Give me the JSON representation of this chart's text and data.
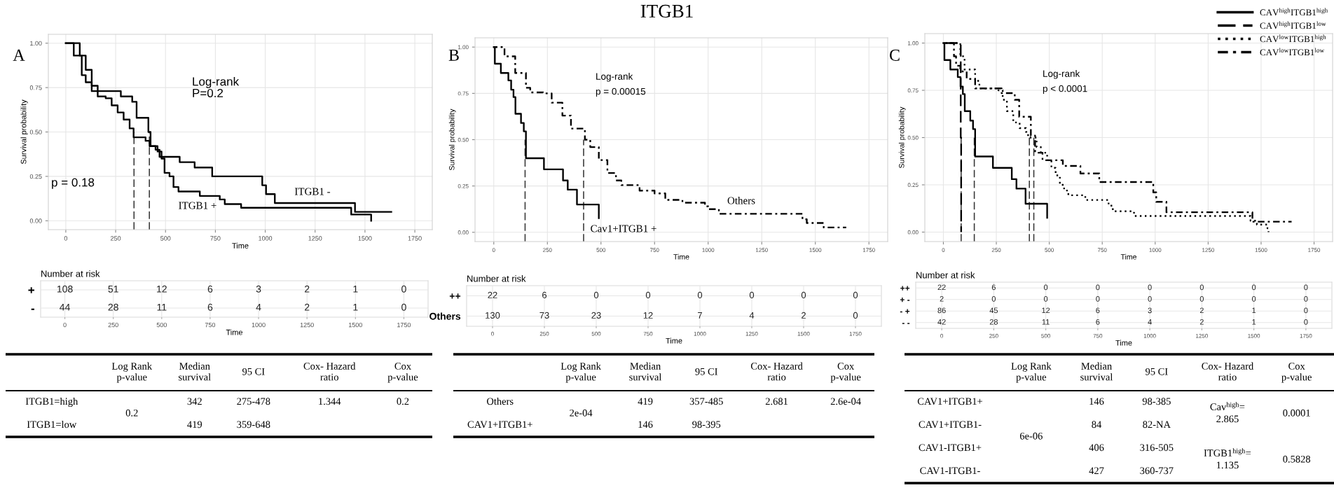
{
  "chart_data": [
    {
      "type": "step",
      "xlabel": "Time",
      "ylabel": "Survival probability",
      "xlim": [
        -87.5,
        1837.5
      ],
      "ylim": [
        -0.05,
        1.05
      ],
      "xticks": [
        0,
        250,
        500,
        750,
        1000,
        1250,
        1500,
        1750
      ],
      "yticks": [
        {
          "value": 0,
          "label": "0.00"
        },
        {
          "value": 0.25,
          "label": "0.25"
        },
        {
          "value": 0.5,
          "label": "0.50"
        },
        {
          "value": 0.75,
          "label": "0.75"
        },
        {
          "value": 1,
          "label": "1.00"
        }
      ],
      "grid": true,
      "series": [
        {
          "color": "#000000",
          "line_style": "solid",
          "x": [
            0,
            40,
            80,
            100,
            130,
            160,
            200,
            230,
            260,
            290,
            320,
            340,
            400,
            420,
            460,
            480,
            495,
            520,
            540,
            565,
            672,
            772,
            797,
            879,
            1431,
            1531
          ],
          "values": [
            1,
            0.93,
            0.82,
            0.78,
            0.73,
            0.7,
            0.69,
            0.65,
            0.61,
            0.57,
            0.52,
            0.47,
            0.45,
            0.42,
            0.39,
            0.35,
            0.27,
            0.25,
            0.19,
            0.165,
            0.14,
            0.12,
            0.094,
            0.073,
            0.035,
            0
          ]
        },
        {
          "color": "#000000",
          "line_style": "solid",
          "x": [
            0,
            70,
            100,
            130,
            160,
            276,
            333,
            355,
            414,
            425,
            450,
            470,
            571,
            646,
            734,
            985,
            1004,
            1048,
            1450,
            1632
          ],
          "values": [
            1,
            0.93,
            0.85,
            0.76,
            0.73,
            0.7,
            0.67,
            0.58,
            0.5,
            0.42,
            0.4,
            0.36,
            0.33,
            0.3,
            0.25,
            0.2,
            0.15,
            0.1,
            0.05,
            0.05
          ]
        }
      ],
      "ref_lines": [
        {
          "axis": "x",
          "value": 342,
          "line_style": "dashed",
          "color": "#333333"
        },
        {
          "axis": "x",
          "value": 419,
          "line_style": "dashed",
          "color": "#333333"
        }
      ],
      "annotations": [
        "ITGB1",
        "A",
        "Log-rank\nP=0.2",
        "p = 0.18",
        "ITGB1 -",
        "ITGB1 +"
      ]
    },
    {
      "type": "heatmap",
      "title": "Number at risk",
      "xlabel": "Time",
      "categories": [
        "0",
        "250",
        "500",
        "750",
        "1000",
        "1250",
        "1500",
        "1750"
      ],
      "y_categories": [
        "+",
        "-"
      ],
      "cells": [
        [
          108,
          51,
          12,
          6,
          3,
          2,
          1,
          0
        ],
        [
          44,
          28,
          11,
          6,
          4,
          2,
          1,
          0
        ]
      ],
      "data_labels": true,
      "grid": true
    },
    {
      "type": "other",
      "categories": [
        null,
        "Log Rank\np-value",
        "Median\nsurvival",
        "95 CI",
        "Cox- Hazard\nratio",
        "Cox\np-value"
      ],
      "cell_labels": [
        [
          "ITGB1=high",
          null,
          "342",
          "275-478",
          "1.344",
          "0.2"
        ],
        [
          null,
          "0.2",
          null,
          null,
          null,
          null
        ],
        [
          "ITGB1=low",
          null,
          "419",
          "359-648",
          null,
          null
        ]
      ]
    },
    {
      "type": "step",
      "xlabel": "Time",
      "ylabel": "Survival probability",
      "xlim": [
        -87.5,
        1837.5
      ],
      "ylim": [
        -0.05,
        1.05
      ],
      "xticks": [
        0,
        250,
        500,
        750,
        1000,
        1250,
        1500,
        1750
      ],
      "yticks": [
        {
          "value": 0,
          "label": "0.00"
        },
        {
          "value": 0.25,
          "label": "0.25"
        },
        {
          "value": 0.5,
          "label": "0.50"
        },
        {
          "value": 0.75,
          "label": "0.75"
        },
        {
          "value": 1,
          "label": "1.00"
        }
      ],
      "grid": true,
      "series": [
        {
          "color": "#000000",
          "line_style": "solid",
          "x": [
            0,
            5,
            33,
            68,
            81,
            92,
            101,
            127,
            140,
            150,
            234,
            323,
            345,
            388,
            490
          ],
          "values": [
            1,
            0.91,
            0.86,
            0.82,
            0.77,
            0.73,
            0.64,
            0.59,
            0.545,
            0.4,
            0.34,
            0.28,
            0.23,
            0.15,
            0.076
          ]
        },
        {
          "color": "#000000",
          "line_style": "dashdot",
          "x": [
            0,
            50,
            100,
            150,
            170,
            230,
            270,
            320,
            360,
            425,
            450,
            490,
            530,
            570,
            595,
            680,
            750,
            800,
            880,
            985,
            1000,
            1050,
            1440,
            1460,
            1539,
            1644
          ],
          "values": [
            1,
            0.95,
            0.86,
            0.78,
            0.755,
            0.75,
            0.7,
            0.63,
            0.56,
            0.5,
            0.46,
            0.39,
            0.32,
            0.28,
            0.255,
            0.225,
            0.21,
            0.175,
            0.16,
            0.14,
            0.125,
            0.1,
            0.07,
            0.05,
            0.026,
            0.026
          ]
        }
      ],
      "ref_lines": [
        {
          "axis": "x",
          "value": 146,
          "line_style": "dashed",
          "color": "#333333"
        },
        {
          "axis": "x",
          "value": 419,
          "line_style": "dashed",
          "color": "#333333"
        }
      ],
      "annotations": [
        "B",
        "Log-rank\np = 0.00015",
        "Others",
        "Cav1+ITGB1 +"
      ]
    },
    {
      "type": "heatmap",
      "title": "Number at risk",
      "xlabel": "Time",
      "categories": [
        "0",
        "250",
        "500",
        "750",
        "1000",
        "1250",
        "1500",
        "1750"
      ],
      "y_categories": [
        "++",
        "Others"
      ],
      "cells": [
        [
          22,
          6,
          0,
          0,
          0,
          0,
          0,
          0
        ],
        [
          130,
          73,
          23,
          12,
          7,
          4,
          2,
          0
        ]
      ],
      "data_labels": true,
      "grid": true
    },
    {
      "type": "other",
      "categories": [
        null,
        "Log Rank\np-value",
        "Median\nsurvival",
        "95 CI",
        "Cox- Hazard\nratio",
        "Cox\np-value"
      ],
      "cell_labels": [
        [
          "Others",
          null,
          "419",
          "357-485",
          "2.681",
          "2.6e-04"
        ],
        [
          null,
          "2e-04",
          null,
          null,
          null,
          null
        ],
        [
          "CAV1+ITGB1+",
          null,
          "146",
          "98-395",
          null,
          null
        ]
      ]
    },
    {
      "type": "step",
      "xlabel": "Time",
      "ylabel": "Survival probability",
      "xlim": [
        -87.5,
        1837.5
      ],
      "ylim": [
        -0.05,
        1.05
      ],
      "xticks": [
        0,
        250,
        500,
        750,
        1000,
        1250,
        1500,
        1750
      ],
      "yticks": [
        {
          "value": 0,
          "label": "0.00"
        },
        {
          "value": 0.25,
          "label": "0.25"
        },
        {
          "value": 0.5,
          "label": "0.50"
        },
        {
          "value": 0.75,
          "label": "0.75"
        },
        {
          "value": 1,
          "label": "1.00"
        }
      ],
      "grid": true,
      "legend": "top right",
      "series": [
        {
          "name": "CAV$^{high}$ITGB1$^{high}$",
          "color": "#000000",
          "line_style": "solid",
          "x": [
            0,
            5,
            33,
            68,
            81,
            92,
            101,
            127,
            140,
            150,
            234,
            323,
            345,
            388,
            490
          ],
          "values": [
            1,
            0.91,
            0.86,
            0.82,
            0.77,
            0.73,
            0.64,
            0.59,
            0.545,
            0.4,
            0.34,
            0.28,
            0.23,
            0.15,
            0.076
          ]
        },
        {
          "name": "CAV$^{high}$ITGB1$^{low}$",
          "color": "#000000",
          "line_style": "dashed",
          "x": [
            0,
            82,
            84
          ],
          "values": [
            1,
            0.5,
            0
          ]
        },
        {
          "name": "CAV$^{low}$ITGB1$^{high}$",
          "color": "#000000",
          "line_style": "dotted",
          "x": [
            0,
            80,
            100,
            150,
            170,
            260,
            280,
            300,
            330,
            360,
            390,
            400,
            440,
            460,
            490,
            510,
            530,
            550,
            570,
            590,
            670,
            780,
            800,
            900,
            1450,
            1480,
            1530,
            1535
          ],
          "values": [
            1,
            0.93,
            0.86,
            0.8,
            0.76,
            0.75,
            0.7,
            0.64,
            0.58,
            0.55,
            0.53,
            0.5,
            0.45,
            0.42,
            0.38,
            0.34,
            0.3,
            0.25,
            0.22,
            0.195,
            0.17,
            0.14,
            0.11,
            0.085,
            0.06,
            0.04,
            0.02,
            0
          ]
        },
        {
          "name": "CAV$^{low}$ITGB1$^{low}$",
          "color": "#000000",
          "line_style": "dashdot",
          "x": [
            0,
            50,
            60,
            80,
            110,
            150,
            275,
            337,
            358,
            413,
            433,
            468,
            564,
            647,
            736,
            991,
            1005,
            1053,
            1459,
            1644
          ],
          "values": [
            1,
            0.93,
            0.88,
            0.85,
            0.81,
            0.76,
            0.735,
            0.7,
            0.61,
            0.51,
            0.42,
            0.38,
            0.35,
            0.31,
            0.265,
            0.21,
            0.16,
            0.105,
            0.055,
            0.055
          ]
        }
      ],
      "ref_lines": [
        {
          "axis": "x",
          "value": 84,
          "line_style": "dashed",
          "color": "#333333"
        },
        {
          "axis": "x",
          "value": 146,
          "line_style": "dashed",
          "color": "#333333"
        },
        {
          "axis": "x",
          "value": 406,
          "line_style": "dashed",
          "color": "#333333"
        },
        {
          "axis": "x",
          "value": 427,
          "line_style": "dashed",
          "color": "#333333"
        }
      ],
      "annotations": [
        "C",
        "Log-rank\np < 0.0001"
      ]
    },
    {
      "type": "heatmap",
      "title": "Number at risk",
      "xlabel": "Time",
      "categories": [
        "0",
        "250",
        "500",
        "750",
        "1000",
        "1250",
        "1500",
        "1750"
      ],
      "y_categories": [
        "++",
        "+ -",
        "- +",
        "- -"
      ],
      "cells": [
        [
          22,
          6,
          0,
          0,
          0,
          0,
          0,
          0
        ],
        [
          2,
          0,
          0,
          0,
          0,
          0,
          0,
          0
        ],
        [
          86,
          45,
          12,
          6,
          3,
          2,
          1,
          0
        ],
        [
          42,
          28,
          11,
          6,
          4,
          2,
          1,
          0
        ]
      ],
      "data_labels": true,
      "grid": true
    },
    {
      "type": "other",
      "categories": [
        null,
        "Log Rank\np-value",
        "Median\nsurvival",
        "95 CI",
        "Cox- Hazard\nratio",
        "Cox\np-value"
      ],
      "cell_labels": [
        [
          "CAV1+ITGB1+",
          null,
          "146",
          "98-385",
          null,
          null
        ],
        [
          null,
          null,
          null,
          null,
          "Cav$^{high}$=\n2.865",
          "0.0001"
        ],
        [
          "CAV1+ITGB1-",
          null,
          "84",
          "82-NA",
          null,
          null
        ],
        [
          null,
          "6e-06",
          null,
          null,
          null,
          null
        ],
        [
          "CAV1-ITGB1+",
          null,
          "406",
          "316-505",
          null,
          null
        ],
        [
          null,
          null,
          null,
          null,
          "ITGB1$^{high}$=\n1.135",
          "0.5828"
        ],
        [
          "CAV1-ITGB1-",
          null,
          "427",
          "360-737",
          null,
          null
        ]
      ]
    }
  ]
}
